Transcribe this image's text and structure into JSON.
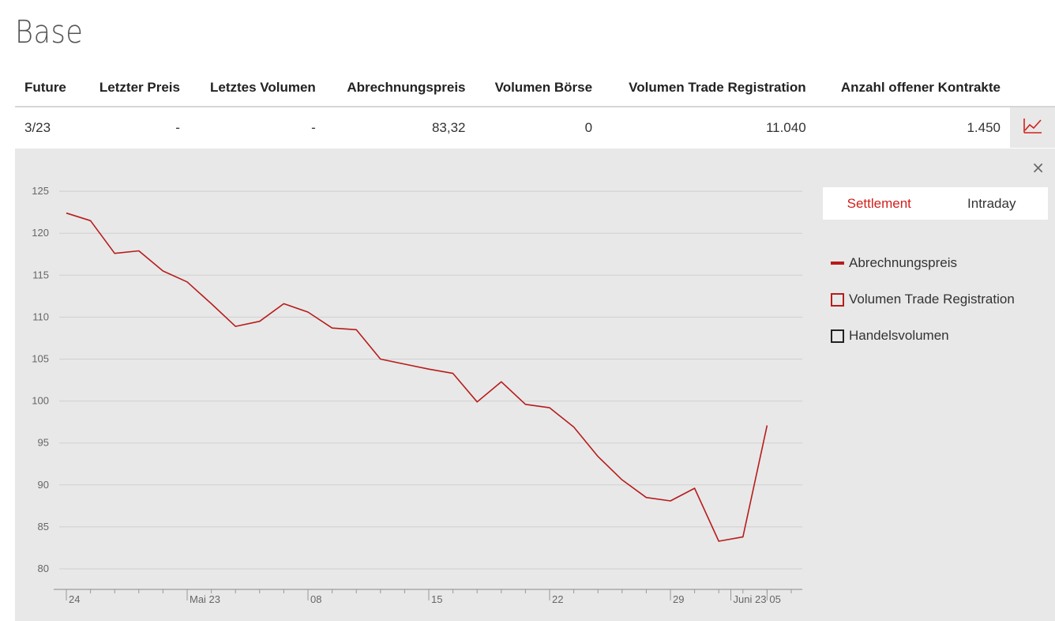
{
  "page": {
    "title": "Base"
  },
  "table": {
    "headers": [
      "Future",
      "Letzter Preis",
      "Letztes Volumen",
      "Abrechnungspreis",
      "Volumen Börse",
      "Volumen Trade Registration",
      "Anzahl offener Kontrakte"
    ],
    "rows": [
      [
        "3/23",
        "-",
        "-",
        "83,32",
        "0",
        "11.040",
        "1.450"
      ]
    ],
    "chart_icon": "line-chart-icon"
  },
  "panel": {
    "close_label": "×",
    "tabs": [
      {
        "label": "Settlement",
        "active": true
      },
      {
        "label": "Intraday",
        "active": false
      }
    ],
    "legend": [
      {
        "label": "Abrechnungspreis",
        "style": "line",
        "color": "#b71c1c"
      },
      {
        "label": "Volumen Trade Registration",
        "style": "box",
        "color": "#b71c1c"
      },
      {
        "label": "Handelsvolumen",
        "style": "box",
        "color": "#222222"
      }
    ]
  },
  "chart_data": {
    "type": "line",
    "title": "",
    "xlabel": "",
    "ylabel": "",
    "ylim": [
      78,
      127
    ],
    "yticks": [
      80,
      85,
      90,
      95,
      100,
      105,
      110,
      115,
      120,
      125
    ],
    "x_tick_labels": [
      "24",
      "Mai 23",
      "08",
      "15",
      "22",
      "29",
      "Juni 23",
      "05"
    ],
    "grid": true,
    "color": "#b71c1c",
    "series": [
      {
        "name": "Abrechnungspreis",
        "x": [
          "2023-04-24",
          "2023-04-25",
          "2023-04-26",
          "2023-04-27",
          "2023-04-28",
          "2023-05-01",
          "2023-05-02",
          "2023-05-03",
          "2023-05-04",
          "2023-05-05",
          "2023-05-08",
          "2023-05-09",
          "2023-05-10",
          "2023-05-11",
          "2023-05-12",
          "2023-05-15",
          "2023-05-16",
          "2023-05-17",
          "2023-05-18",
          "2023-05-19",
          "2023-05-22",
          "2023-05-23",
          "2023-05-24",
          "2023-05-25",
          "2023-05-26",
          "2023-05-29",
          "2023-05-30",
          "2023-05-31",
          "2023-06-01",
          "2023-06-02"
        ],
        "values": [
          122.4,
          121.5,
          117.6,
          117.9,
          115.5,
          114.2,
          111.6,
          108.9,
          109.5,
          111.6,
          110.6,
          108.7,
          108.5,
          105.0,
          104.4,
          103.8,
          103.3,
          99.9,
          102.3,
          99.6,
          99.2,
          96.9,
          93.4,
          90.6,
          88.5,
          88.1,
          89.6,
          83.3,
          83.8,
          97.1
        ]
      }
    ]
  }
}
